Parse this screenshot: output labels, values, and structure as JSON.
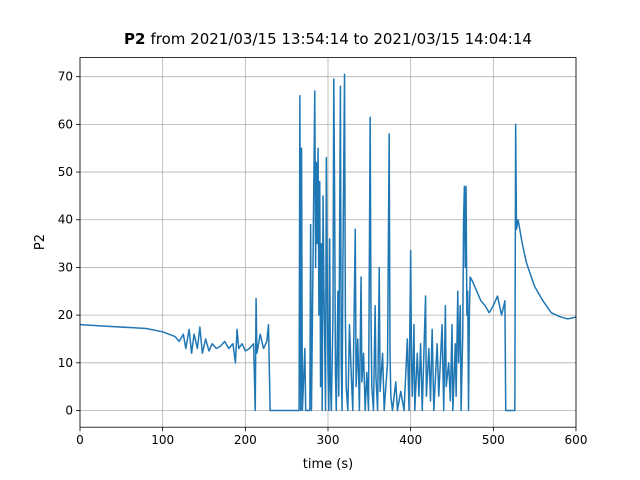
{
  "chart_data": {
    "type": "line",
    "title_name": "P2",
    "title": "from 2021/03/15 13:54:14 to 2021/03/15 14:04:14",
    "xlabel": "time (s)",
    "ylabel": "P2",
    "xlim": [
      0,
      600
    ],
    "ylim": [
      -3.5,
      74
    ],
    "xticks": [
      0,
      100,
      200,
      300,
      400,
      500,
      600
    ],
    "yticks": [
      0,
      10,
      20,
      30,
      40,
      50,
      60,
      70
    ],
    "grid": true,
    "x": [
      0,
      20,
      40,
      60,
      80,
      100,
      115,
      120,
      125,
      128,
      132,
      135,
      138,
      142,
      145,
      148,
      152,
      156,
      160,
      165,
      170,
      175,
      180,
      185,
      188,
      190,
      192,
      196,
      200,
      205,
      210,
      212,
      213,
      214,
      218,
      222,
      226,
      228,
      230,
      265,
      266,
      267,
      268,
      269,
      272,
      273,
      278,
      279,
      280,
      283,
      284,
      285,
      286,
      287,
      288,
      289,
      290,
      291,
      292,
      293,
      294,
      295,
      296,
      297,
      298,
      299,
      300,
      301,
      302,
      303,
      304,
      306,
      307,
      308,
      309,
      310,
      312,
      313,
      315,
      316,
      317,
      318,
      320,
      321,
      322,
      324,
      326,
      328,
      330,
      333,
      334,
      336,
      338,
      340,
      341,
      343,
      345,
      347,
      349,
      351,
      352,
      353,
      355,
      357,
      358,
      360,
      362,
      363,
      366,
      368,
      372,
      374,
      375,
      376,
      378,
      382,
      384,
      388,
      392,
      396,
      398,
      400,
      401,
      402,
      404,
      405,
      408,
      410,
      412,
      414,
      418,
      419,
      422,
      424,
      426,
      428,
      432,
      434,
      438,
      440,
      442,
      443,
      446,
      448,
      450,
      451,
      454,
      455,
      457,
      458,
      460,
      461,
      463,
      464,
      465,
      466,
      467,
      468,
      469,
      470,
      471,
      472,
      475,
      480,
      485,
      490,
      495,
      500,
      505,
      510,
      514,
      515,
      526,
      527,
      528,
      530,
      535,
      540,
      550,
      560,
      570,
      580,
      590,
      600
    ],
    "series": [
      {
        "name": "P2",
        "color": "#1f77b4",
        "values": [
          18,
          17.8,
          17.6,
          17.4,
          17.2,
          16.5,
          15.5,
          14.5,
          16,
          13,
          17,
          12,
          16,
          13,
          17.5,
          12,
          15,
          12.5,
          14,
          13,
          13.5,
          14.5,
          13,
          14,
          10,
          17,
          13,
          14,
          12.5,
          13,
          14,
          0,
          23.5,
          12,
          16,
          13,
          14.5,
          18,
          0,
          0,
          66,
          0,
          55,
          0,
          13,
          0,
          0,
          39,
          0,
          50,
          67,
          30,
          52,
          35,
          55,
          20,
          48,
          5,
          35,
          0,
          45,
          26,
          15,
          0,
          53,
          30,
          8,
          0,
          36,
          5,
          0,
          20,
          69.5,
          45,
          8,
          0,
          25,
          3,
          68,
          10,
          0,
          30,
          70.5,
          20,
          5,
          0,
          18,
          8,
          0,
          38,
          5,
          15,
          0,
          28,
          6,
          12,
          0,
          8,
          0,
          61.5,
          20,
          5,
          0,
          22,
          7,
          0,
          30,
          4,
          12,
          0,
          10,
          58,
          12,
          3,
          0,
          6,
          0,
          4,
          0,
          15,
          0,
          33.5,
          10,
          3,
          18,
          0,
          12,
          3,
          14,
          0,
          24,
          3,
          13,
          2,
          17,
          0,
          14,
          3,
          18,
          0,
          22,
          5,
          10,
          2,
          18,
          0,
          14,
          3,
          25,
          10,
          22,
          0,
          16,
          40,
          47,
          30,
          47,
          20,
          25,
          0,
          20,
          28,
          27,
          25,
          23,
          22,
          20.5,
          22,
          24,
          20,
          23,
          0,
          0,
          60,
          38,
          40,
          35,
          31,
          26,
          23,
          20.5,
          19.7,
          19.2,
          19.6
        ]
      }
    ]
  }
}
